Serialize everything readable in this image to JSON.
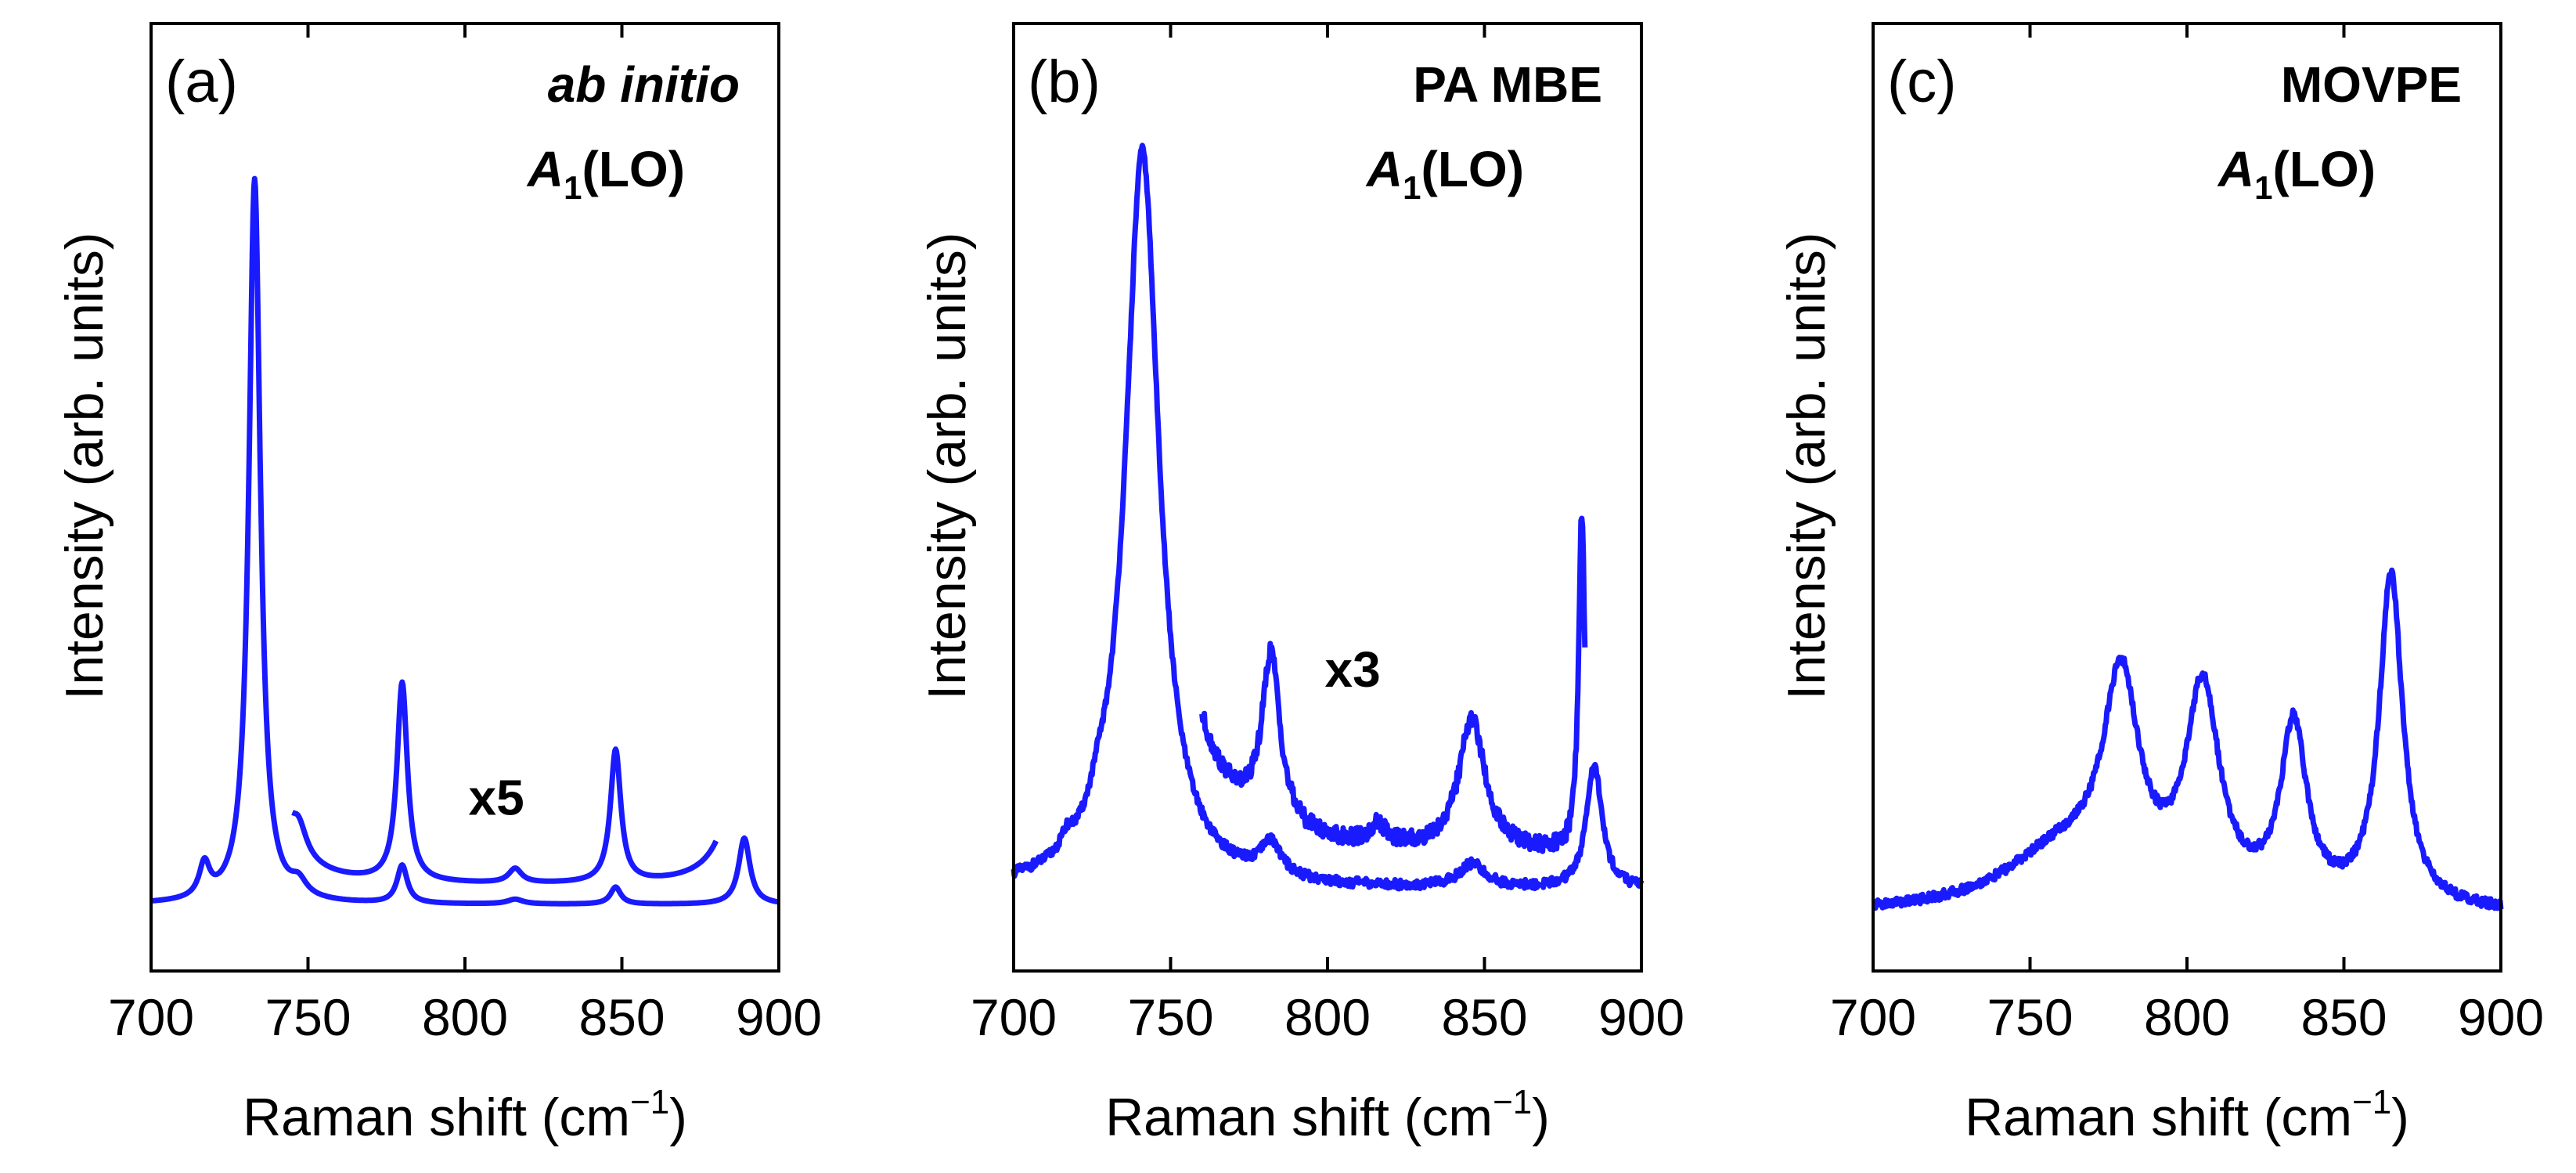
{
  "chart_data": [
    {
      "type": "line",
      "panel_label": "(a)",
      "title": "ab initio",
      "mode_label": {
        "symbol": "A",
        "subscript": "1",
        "suffix": "(LO)"
      },
      "xlabel": "Raman shift (cm",
      "xlabel_sup": "−1",
      "xlabel_end": ")",
      "ylabel": "Intensity (arb. units)",
      "xlim": [
        700,
        900
      ],
      "ylim": [
        0,
        100
      ],
      "xticks": [
        700,
        750,
        800,
        850,
        900
      ],
      "y_ticks_shown": false,
      "annotations": [
        {
          "text": "x5",
          "x": 810,
          "y": 16.5
        }
      ],
      "series": [
        {
          "name": "spectrum",
          "color": "#1a1aff",
          "peaks": [
            {
              "center": 733,
              "height": 76.5,
              "width": 2.2
            },
            {
              "center": 717,
              "height": 3.5,
              "width": 2.0
            },
            {
              "center": 747,
              "height": 1.5,
              "width": 3.0
            },
            {
              "center": 780,
              "height": 4.0,
              "width": 2.0
            },
            {
              "center": 816,
              "height": 0.5,
              "width": 3.0
            },
            {
              "center": 848,
              "height": 1.8,
              "width": 2.0
            },
            {
              "center": 889,
              "height": 7.0,
              "width": 2.2
            }
          ],
          "baseline": 7.0,
          "x_range": [
            700,
            900
          ]
        },
        {
          "name": "x5 magnified",
          "color": "#1a1aff",
          "peaks": [
            {
              "center": 733,
              "height": 45.0,
              "width": 4.5
            },
            {
              "center": 747,
              "height": 3.0,
              "width": 3.0
            },
            {
              "center": 780,
              "height": 21.0,
              "width": 2.0
            },
            {
              "center": 816,
              "height": 1.5,
              "width": 2.5
            },
            {
              "center": 848,
              "height": 14.0,
              "width": 2.0
            },
            {
              "center": 889,
              "height": 15.0,
              "width": 6.0
            }
          ],
          "baseline": 9.0,
          "x_range": [
            745,
            880
          ]
        }
      ]
    },
    {
      "type": "line",
      "panel_label": "(b)",
      "title": "PA MBE",
      "mode_label": {
        "symbol": "A",
        "subscript": "1",
        "suffix": "(LO)"
      },
      "xlabel": "Raman shift (cm",
      "xlabel_sup": "−1",
      "xlabel_end": ")",
      "ylabel": "Intensity (arb. units)",
      "xlim": [
        700,
        900
      ],
      "ylim": [
        0,
        100
      ],
      "xticks": [
        700,
        750,
        800,
        850,
        900
      ],
      "y_ticks_shown": false,
      "annotations": [
        {
          "text": "x3",
          "x": 808,
          "y": 30.0
        }
      ],
      "series": [
        {
          "name": "spectrum",
          "color": "#1a1aff",
          "peaks": [
            {
              "center": 741,
              "height": 78.0,
              "width": 6.5
            },
            {
              "center": 717,
              "height": 1.5,
              "width": 2.0
            },
            {
              "center": 727,
              "height": 2.0,
              "width": 3.0
            },
            {
              "center": 782,
              "height": 3.5,
              "width": 4.0
            },
            {
              "center": 846,
              "height": 2.5,
              "width": 5.0
            },
            {
              "center": 885,
              "height": 13.0,
              "width": 3.0
            }
          ],
          "baseline": 8.5,
          "noise": 0.5,
          "x_range": [
            700,
            900
          ]
        },
        {
          "name": "x3 magnified",
          "color": "#1a1aff",
          "peaks": [
            {
              "center": 741,
              "height": 80.0,
              "width": 9.0
            },
            {
              "center": 782,
              "height": 18.0,
              "width": 3.5
            },
            {
              "center": 816,
              "height": 2.0,
              "width": 3.0
            },
            {
              "center": 846,
              "height": 14.0,
              "width": 5.0
            },
            {
              "center": 881,
              "height": 36.0,
              "width": 1.2
            }
          ],
          "baseline": 12.0,
          "noise": 0.9,
          "x_range": [
            760,
            882
          ]
        }
      ]
    },
    {
      "type": "line",
      "panel_label": "(c)",
      "title": "MOVPE",
      "mode_label": {
        "symbol": "A",
        "subscript": "1",
        "suffix": "(LO)"
      },
      "xlabel": "Raman shift (cm",
      "xlabel_sup": "−1",
      "xlabel_end": ")",
      "ylabel": "Intensity (arb. units)",
      "xlim": [
        700,
        900
      ],
      "ylim": [
        0,
        100
      ],
      "xticks": [
        700,
        750,
        800,
        850,
        900
      ],
      "y_ticks_shown": false,
      "annotations": [],
      "series": [
        {
          "name": "spectrum",
          "color": "#1a1aff",
          "peaks": [
            {
              "center": 779,
              "height": 22.0,
              "width": 7.0
            },
            {
              "center": 805,
              "height": 22.0,
              "width": 6.5
            },
            {
              "center": 834,
              "height": 18.5,
              "width": 5.0
            },
            {
              "center": 865,
              "height": 35.0,
              "width": 4.5
            },
            {
              "center": 760,
              "height": 6.0,
              "width": 22.0
            }
          ],
          "baseline": 6.0,
          "noise": 0.5,
          "x_range": [
            700,
            900
          ]
        }
      ]
    }
  ]
}
